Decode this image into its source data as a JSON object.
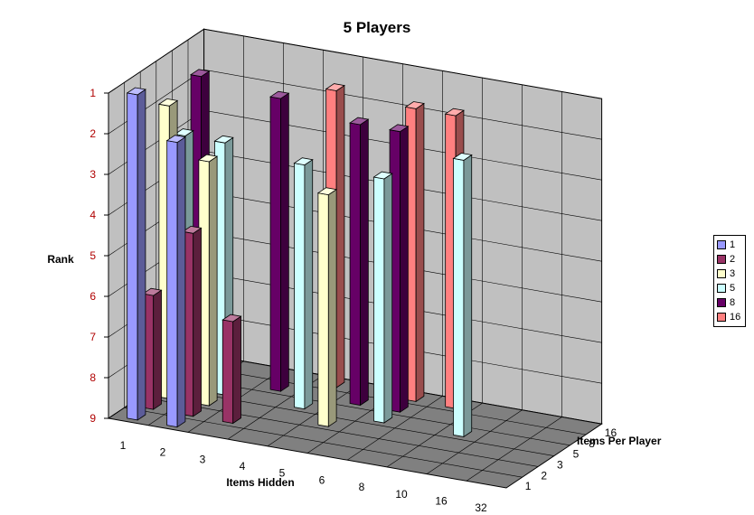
{
  "chart_data": {
    "type": "bar",
    "subtype": "3d-column",
    "title": "5 Players",
    "xlabel": "Items Hidden",
    "ylabel": "Rank",
    "zlabel": "Items Per Player",
    "categories": [
      "1",
      "2",
      "3",
      "4",
      "5",
      "6",
      "8",
      "10",
      "16",
      "32"
    ],
    "y_ticks": [
      "1",
      "2",
      "3",
      "4",
      "5",
      "6",
      "7",
      "8",
      "9"
    ],
    "ylim": [
      1,
      9
    ],
    "y_inverted": true,
    "legend_position": "right",
    "series": [
      {
        "name": "1",
        "color": "#9999ff",
        "values": [
          1.0,
          2.0,
          null,
          null,
          null,
          null,
          null,
          null,
          null,
          null
        ]
      },
      {
        "name": "2",
        "color": "#993366",
        "values": [
          6.2,
          4.5,
          6.5,
          null,
          null,
          null,
          null,
          null,
          null,
          null
        ]
      },
      {
        "name": "3",
        "color": "#ffffcc",
        "values": [
          1.8,
          3.0,
          null,
          null,
          3.3,
          null,
          null,
          null,
          null,
          null
        ]
      },
      {
        "name": "5",
        "color": "#ccffff",
        "values": [
          2.8,
          2.8,
          null,
          3.0,
          null,
          3.0,
          null,
          2.2,
          null,
          null
        ]
      },
      {
        "name": "8",
        "color": "#660066",
        "values": [
          1.6,
          null,
          1.8,
          null,
          2.1,
          2.1,
          null,
          null,
          null,
          null
        ]
      },
      {
        "name": "16",
        "color": "#ff8080",
        "values": [
          null,
          null,
          null,
          1.7,
          null,
          1.8,
          1.8,
          null,
          null,
          null
        ]
      }
    ]
  }
}
